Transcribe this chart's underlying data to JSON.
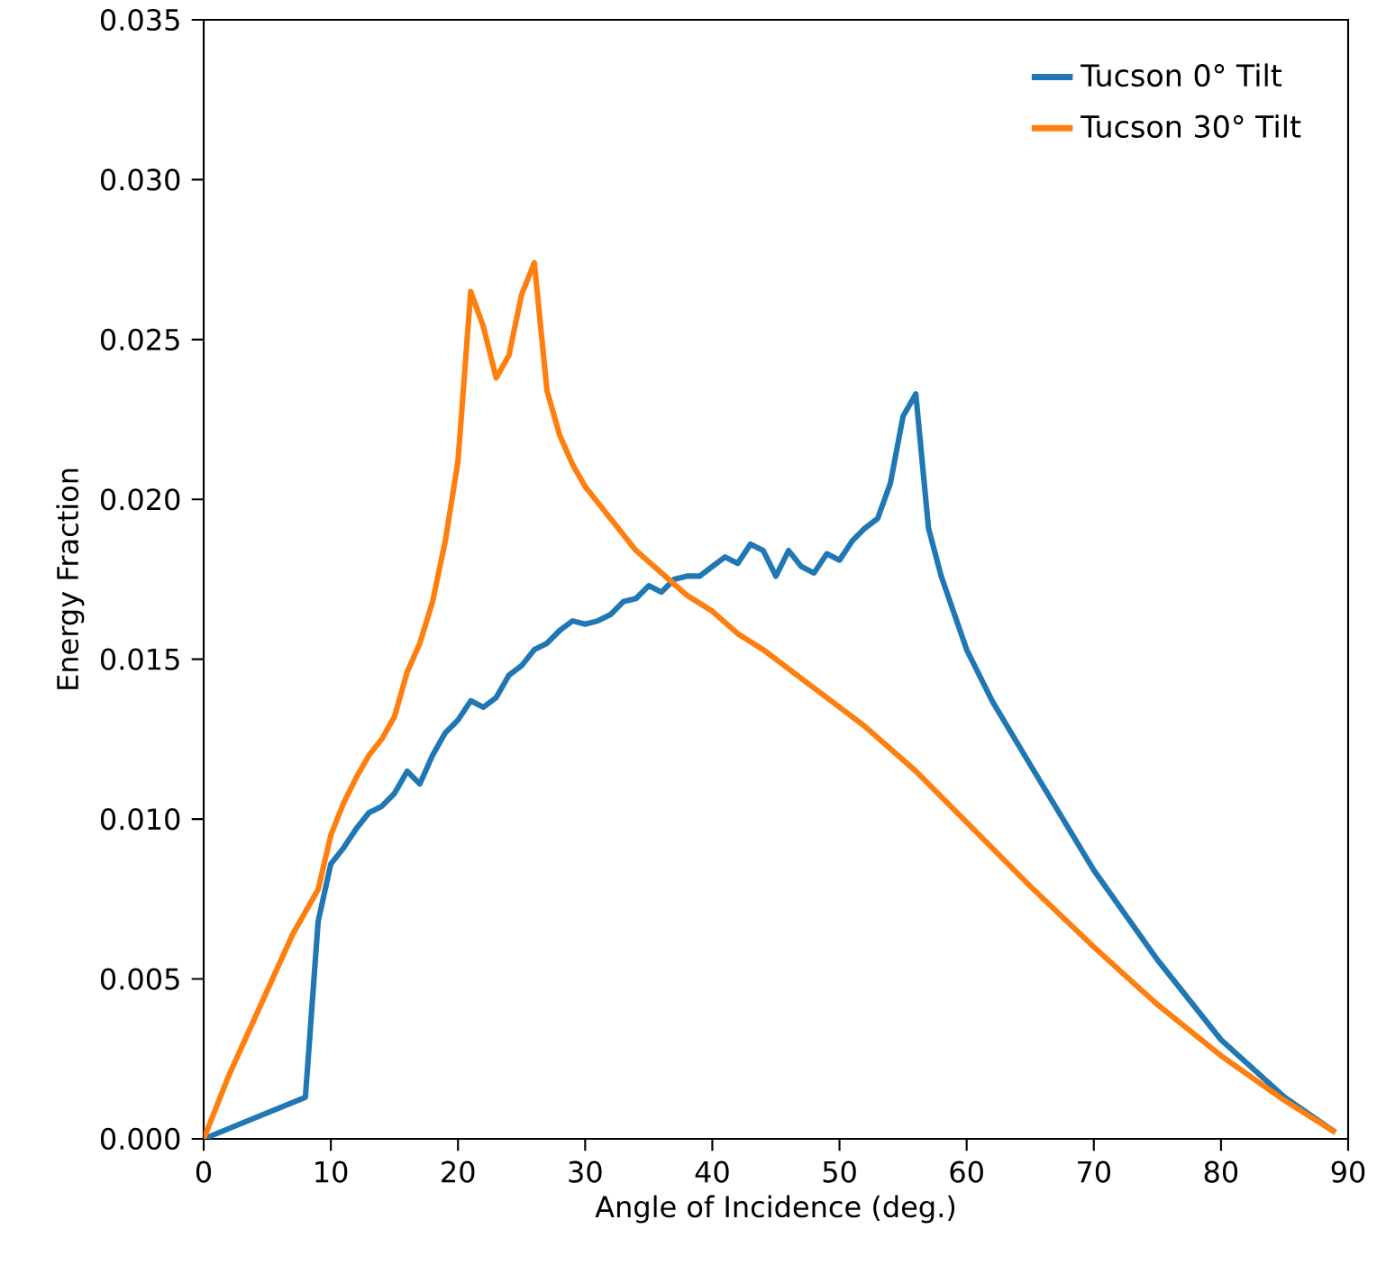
{
  "chart_data": {
    "type": "line",
    "xlabel": "Angle of Incidence (deg.)",
    "ylabel": "Energy Fraction",
    "xlim": [
      0,
      90
    ],
    "ylim": [
      0,
      0.035
    ],
    "xticks": [
      0,
      10,
      20,
      30,
      40,
      50,
      60,
      70,
      80,
      90
    ],
    "yticks": [
      {
        "value": 0,
        "label": "0.000"
      },
      {
        "value": 0.005,
        "label": "0.005"
      },
      {
        "value": 0.01,
        "label": "0.010"
      },
      {
        "value": 0.015,
        "label": "0.015"
      },
      {
        "value": 0.02,
        "label": "0.020"
      },
      {
        "value": 0.025,
        "label": "0.025"
      },
      {
        "value": 0.03,
        "label": "0.030"
      },
      {
        "value": 0.035,
        "label": "0.035"
      }
    ],
    "grid": false,
    "legend": "top right",
    "marker": "none",
    "line_style": "solid",
    "series": [
      {
        "name": "Tucson 0° Tilt",
        "color": "#1f77b4",
        "x": [
          0,
          8,
          9,
          10,
          11,
          12,
          13,
          14,
          15,
          16,
          17,
          18,
          19,
          20,
          21,
          22,
          23,
          24,
          25,
          26,
          27,
          28,
          29,
          30,
          31,
          32,
          33,
          34,
          35,
          36,
          37,
          38,
          39,
          40,
          41,
          42,
          43,
          44,
          45,
          46,
          47,
          48,
          49,
          50,
          51,
          52,
          53,
          54,
          55,
          56,
          57,
          58,
          60,
          62,
          65,
          70,
          75,
          80,
          85,
          89
        ],
        "values": [
          0,
          0.0013,
          0.0068,
          0.0086,
          0.0091,
          0.0097,
          0.0102,
          0.0104,
          0.0108,
          0.0115,
          0.0111,
          0.012,
          0.0127,
          0.0131,
          0.0137,
          0.0135,
          0.0138,
          0.0145,
          0.0148,
          0.0153,
          0.0155,
          0.0159,
          0.0162,
          0.0161,
          0.0162,
          0.0164,
          0.0168,
          0.0169,
          0.0173,
          0.0171,
          0.0175,
          0.0176,
          0.0176,
          0.0179,
          0.0182,
          0.018,
          0.0186,
          0.0184,
          0.0176,
          0.0184,
          0.0179,
          0.0177,
          0.0183,
          0.0181,
          0.0187,
          0.0191,
          0.0194,
          0.0205,
          0.0226,
          0.0233,
          0.0191,
          0.0176,
          0.0153,
          0.0137,
          0.0117,
          0.0084,
          0.0056,
          0.0031,
          0.0013,
          0.0002
        ]
      },
      {
        "name": "Tucson 30° Tilt",
        "color": "#ff7f0e",
        "x": [
          0,
          2,
          7,
          8,
          9,
          10,
          11,
          12,
          13,
          14,
          15,
          16,
          17,
          18,
          19,
          20,
          21,
          22,
          23,
          24,
          25,
          26,
          27,
          28,
          29,
          30,
          32,
          34,
          36,
          38,
          40,
          42,
          44,
          46,
          48,
          50,
          52,
          54,
          56,
          58,
          60,
          65,
          70,
          75,
          80,
          85,
          89
        ],
        "values": [
          0,
          0.002,
          0.0064,
          0.0071,
          0.0078,
          0.0095,
          0.0105,
          0.0113,
          0.012,
          0.0125,
          0.0132,
          0.0146,
          0.0155,
          0.0168,
          0.0187,
          0.0212,
          0.0265,
          0.0254,
          0.0238,
          0.0245,
          0.0264,
          0.0274,
          0.0234,
          0.022,
          0.0211,
          0.0204,
          0.0194,
          0.0184,
          0.0177,
          0.017,
          0.0165,
          0.0158,
          0.0153,
          0.0147,
          0.0141,
          0.0135,
          0.0129,
          0.0122,
          0.0115,
          0.0107,
          0.0099,
          0.0079,
          0.006,
          0.0042,
          0.0026,
          0.0012,
          0.0002
        ]
      }
    ]
  }
}
